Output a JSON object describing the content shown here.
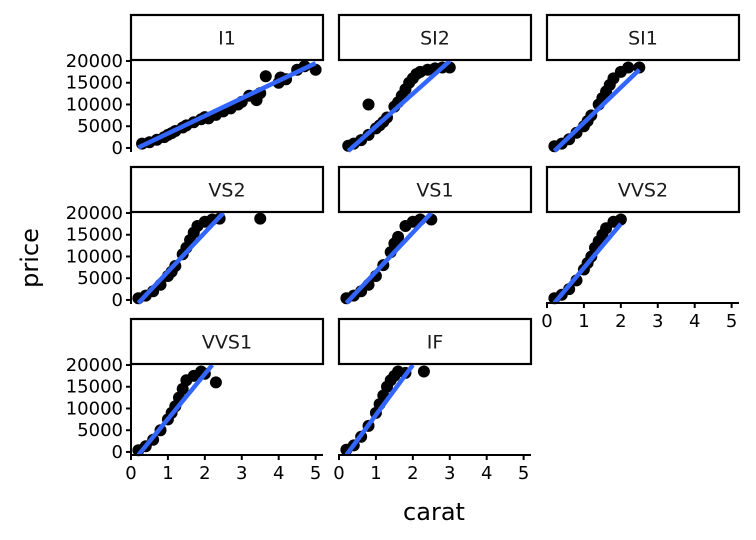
{
  "chart_data": {
    "type": "scatter",
    "xlabel": "carat",
    "ylabel": "price",
    "xlim": [
      0,
      5.2
    ],
    "ylim": [
      -700,
      20000
    ],
    "xticks": [
      0,
      1,
      2,
      3,
      4,
      5
    ],
    "yticks": [
      0,
      5000,
      10000,
      15000,
      20000
    ],
    "xtick_labels": [
      "0",
      "1",
      "2",
      "3",
      "4",
      "5"
    ],
    "ytick_labels": [
      "0",
      "5000",
      "10000",
      "15000",
      "20000"
    ],
    "point_color": "#000000",
    "line_color": "#3366FF",
    "panels": [
      {
        "facet": "I1",
        "points": [
          [
            0.3,
            1000
          ],
          [
            0.5,
            1300
          ],
          [
            0.7,
            1900
          ],
          [
            0.9,
            2500
          ],
          [
            1.0,
            3000
          ],
          [
            1.1,
            3400
          ],
          [
            1.2,
            3900
          ],
          [
            1.4,
            4700
          ],
          [
            1.5,
            5200
          ],
          [
            1.7,
            5900
          ],
          [
            1.9,
            6600
          ],
          [
            2.0,
            7100
          ],
          [
            2.1,
            6800
          ],
          [
            2.3,
            7600
          ],
          [
            2.5,
            8400
          ],
          [
            2.7,
            9100
          ],
          [
            2.9,
            10000
          ],
          [
            3.0,
            10600
          ],
          [
            3.2,
            12000
          ],
          [
            3.4,
            11000
          ],
          [
            3.5,
            12600
          ],
          [
            3.65,
            16500
          ],
          [
            4.0,
            15000
          ],
          [
            4.05,
            16200
          ],
          [
            4.2,
            15800
          ],
          [
            4.5,
            18000
          ],
          [
            4.7,
            18800
          ],
          [
            5.0,
            18000
          ]
        ],
        "fit": [
          [
            0.2,
            100
          ],
          [
            5.0,
            19500
          ]
        ]
      },
      {
        "facet": "SI2",
        "points": [
          [
            0.25,
            500
          ],
          [
            0.4,
            1000
          ],
          [
            0.6,
            1800
          ],
          [
            0.8,
            3000
          ],
          [
            1.0,
            4500
          ],
          [
            1.1,
            5200
          ],
          [
            1.2,
            6000
          ],
          [
            1.3,
            7000
          ],
          [
            1.5,
            9500
          ],
          [
            1.6,
            10500
          ],
          [
            1.7,
            12000
          ],
          [
            1.8,
            13500
          ],
          [
            1.9,
            15000
          ],
          [
            2.0,
            16000
          ],
          [
            2.1,
            17000
          ],
          [
            2.2,
            17500
          ],
          [
            2.4,
            18000
          ],
          [
            2.6,
            18300
          ],
          [
            2.8,
            18500
          ],
          [
            3.0,
            18500
          ],
          [
            0.8,
            10000
          ]
        ],
        "fit": [
          [
            0.25,
            -700
          ],
          [
            3.0,
            20000
          ]
        ]
      },
      {
        "facet": "SI1",
        "points": [
          [
            0.2,
            400
          ],
          [
            0.4,
            1000
          ],
          [
            0.6,
            2000
          ],
          [
            0.8,
            3500
          ],
          [
            1.0,
            5000
          ],
          [
            1.1,
            6200
          ],
          [
            1.2,
            7500
          ],
          [
            1.4,
            10000
          ],
          [
            1.5,
            11500
          ],
          [
            1.6,
            13000
          ],
          [
            1.7,
            14500
          ],
          [
            1.8,
            16000
          ],
          [
            2.0,
            17500
          ],
          [
            2.2,
            18500
          ],
          [
            2.5,
            18500
          ]
        ],
        "fit": [
          [
            0.2,
            -700
          ],
          [
            2.5,
            18000
          ]
        ]
      },
      {
        "facet": "VS2",
        "points": [
          [
            0.2,
            400
          ],
          [
            0.4,
            1000
          ],
          [
            0.6,
            2000
          ],
          [
            0.8,
            3500
          ],
          [
            1.0,
            5500
          ],
          [
            1.1,
            6500
          ],
          [
            1.2,
            7800
          ],
          [
            1.4,
            10500
          ],
          [
            1.5,
            12000
          ],
          [
            1.6,
            13800
          ],
          [
            1.7,
            15500
          ],
          [
            1.8,
            17000
          ],
          [
            2.0,
            18000
          ],
          [
            2.2,
            18500
          ],
          [
            2.4,
            18700
          ],
          [
            3.5,
            18700
          ]
        ],
        "fit": [
          [
            0.2,
            -700
          ],
          [
            2.5,
            20000
          ]
        ]
      },
      {
        "facet": "VS1",
        "points": [
          [
            0.2,
            400
          ],
          [
            0.4,
            1000
          ],
          [
            0.6,
            2000
          ],
          [
            0.8,
            3500
          ],
          [
            1.0,
            5500
          ],
          [
            1.2,
            8000
          ],
          [
            1.4,
            11000
          ],
          [
            1.5,
            13000
          ],
          [
            1.6,
            14500
          ],
          [
            1.8,
            17000
          ],
          [
            2.0,
            18000
          ],
          [
            2.2,
            18500
          ],
          [
            2.5,
            18500
          ]
        ],
        "fit": [
          [
            0.2,
            -700
          ],
          [
            2.5,
            20000
          ]
        ]
      },
      {
        "facet": "VVS2",
        "points": [
          [
            0.2,
            400
          ],
          [
            0.4,
            1200
          ],
          [
            0.6,
            2500
          ],
          [
            0.8,
            4500
          ],
          [
            1.0,
            7000
          ],
          [
            1.1,
            8500
          ],
          [
            1.2,
            10000
          ],
          [
            1.3,
            12000
          ],
          [
            1.4,
            13500
          ],
          [
            1.5,
            15000
          ],
          [
            1.6,
            16500
          ],
          [
            1.8,
            18000
          ],
          [
            2.0,
            18500
          ]
        ],
        "fit": [
          [
            0.2,
            -700
          ],
          [
            2.0,
            17500
          ]
        ]
      },
      {
        "facet": "VVS1",
        "points": [
          [
            0.2,
            400
          ],
          [
            0.4,
            1300
          ],
          [
            0.6,
            2800
          ],
          [
            0.8,
            5000
          ],
          [
            1.0,
            7500
          ],
          [
            1.1,
            9000
          ],
          [
            1.2,
            10500
          ],
          [
            1.3,
            12500
          ],
          [
            1.4,
            14500
          ],
          [
            1.5,
            16500
          ],
          [
            1.7,
            17500
          ],
          [
            1.9,
            18500
          ],
          [
            2.0,
            18000
          ],
          [
            2.3,
            16000
          ]
        ],
        "fit": [
          [
            0.2,
            -700
          ],
          [
            2.2,
            20000
          ]
        ]
      },
      {
        "facet": "IF",
        "points": [
          [
            0.2,
            500
          ],
          [
            0.4,
            1500
          ],
          [
            0.6,
            3500
          ],
          [
            0.8,
            6000
          ],
          [
            1.0,
            9000
          ],
          [
            1.1,
            11000
          ],
          [
            1.2,
            13000
          ],
          [
            1.3,
            15000
          ],
          [
            1.4,
            16500
          ],
          [
            1.5,
            17500
          ],
          [
            1.6,
            18500
          ],
          [
            1.8,
            18200
          ],
          [
            2.3,
            18500
          ]
        ],
        "fit": [
          [
            0.2,
            -700
          ],
          [
            2.0,
            20000
          ]
        ]
      }
    ]
  }
}
